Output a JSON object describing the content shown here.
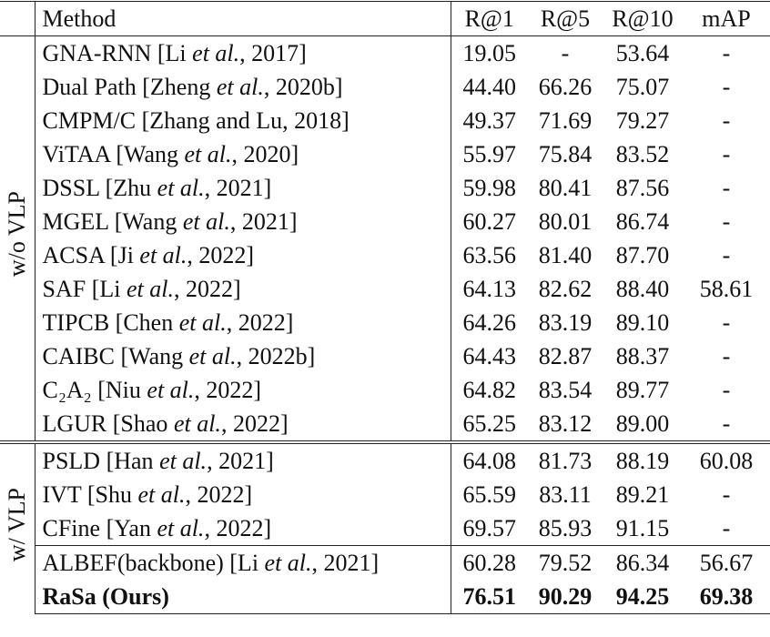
{
  "header": [
    "Method",
    "R@1",
    "R@5",
    "R@10",
    "mAP"
  ],
  "groups": [
    {
      "label": "w/o VLP",
      "rows": [
        {
          "method": [
            "GNA-RNN [Li ",
            "et al.",
            ", 2017]"
          ],
          "values": [
            "19.05",
            "-",
            "53.64",
            "-"
          ]
        },
        {
          "method": [
            "Dual Path [Zheng ",
            "et al.",
            ", 2020b]"
          ],
          "values": [
            "44.40",
            "66.26",
            "75.07",
            "-"
          ]
        },
        {
          "method": [
            "CMPM/C [Zhang and Lu, 2018]"
          ],
          "values": [
            "49.37",
            "71.69",
            "79.27",
            "-"
          ]
        },
        {
          "method": [
            "ViTAA [Wang ",
            "et al.",
            ", 2020]"
          ],
          "values": [
            "55.97",
            "75.84",
            "83.52",
            "-"
          ]
        },
        {
          "method": [
            "DSSL [Zhu ",
            "et al.",
            ", 2021]"
          ],
          "values": [
            "59.98",
            "80.41",
            "87.56",
            "-"
          ]
        },
        {
          "method": [
            "MGEL [Wang ",
            "et al.",
            ", 2021]"
          ],
          "values": [
            "60.27",
            "80.01",
            "86.74",
            "-"
          ]
        },
        {
          "method": [
            "ACSA [Ji ",
            "et al.",
            ", 2022]"
          ],
          "values": [
            "63.56",
            "81.40",
            "87.70",
            "-"
          ]
        },
        {
          "method": [
            "SAF [Li ",
            "et al.",
            ", 2022]"
          ],
          "values": [
            "64.13",
            "82.62",
            "88.40",
            "58.61"
          ]
        },
        {
          "method": [
            "TIPCB [Chen ",
            "et al.",
            ", 2022]"
          ],
          "values": [
            "64.26",
            "83.19",
            "89.10",
            "-"
          ]
        },
        {
          "method": [
            "CAIBC [Wang ",
            "et al.",
            ", 2022b]"
          ],
          "values": [
            "64.43",
            "82.87",
            "88.37",
            "-"
          ]
        },
        {
          "method": [
            "C₂A₂ [Niu ",
            "et al.",
            ", 2022]"
          ],
          "values": [
            "64.82",
            "83.54",
            "89.77",
            "-"
          ]
        },
        {
          "method": [
            "LGUR [Shao ",
            "et al.",
            ", 2022]"
          ],
          "values": [
            "65.25",
            "83.12",
            "89.00",
            "-"
          ]
        }
      ]
    },
    {
      "label": "w/ VLP",
      "rows": [
        {
          "method": [
            "PSLD [Han ",
            "et al.",
            ", 2021]"
          ],
          "values": [
            "64.08",
            "81.73",
            "88.19",
            "60.08"
          ]
        },
        {
          "method": [
            "IVT [Shu ",
            "et al.",
            ", 2022]"
          ],
          "values": [
            "65.59",
            "83.11",
            "89.21",
            "-"
          ]
        },
        {
          "method": [
            "CFine [Yan ",
            "et al.",
            ", 2022]"
          ],
          "values": [
            "69.57",
            "85.93",
            "91.15",
            "-"
          ]
        },
        {
          "method": [
            "ALBEF(backbone) [Li ",
            "et al.",
            ", 2021]"
          ],
          "values": [
            "60.28",
            "79.52",
            "86.34",
            "56.67"
          ],
          "rule_above": true
        },
        {
          "method": [
            "RaSa (Ours)"
          ],
          "values": [
            "76.51",
            "90.29",
            "94.25",
            "69.38"
          ],
          "bold": true
        }
      ]
    }
  ]
}
